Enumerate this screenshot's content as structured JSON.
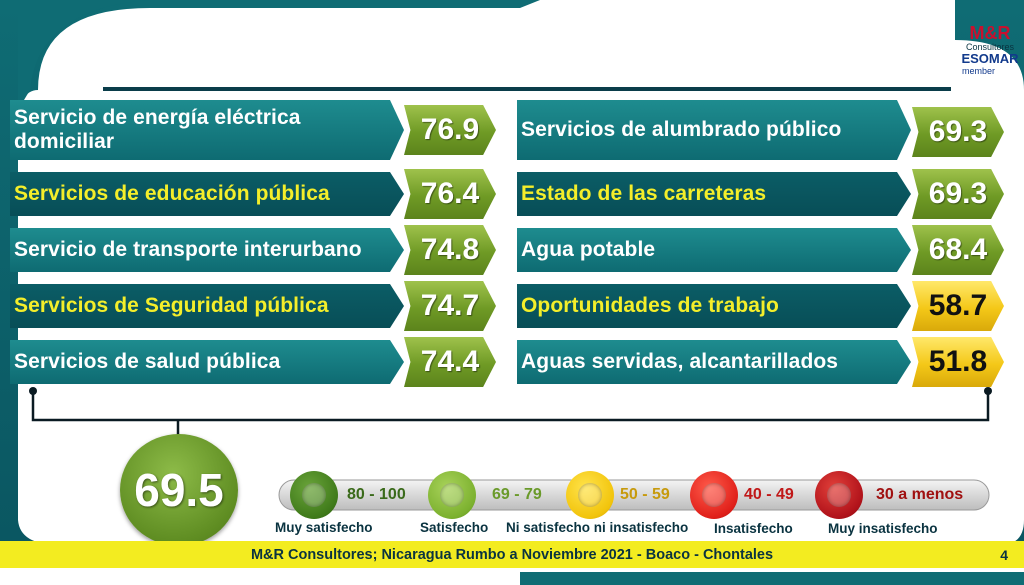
{
  "logo": {
    "company": "M&R",
    "subtitle": "Consultores",
    "association": "ESOMAR",
    "membership": "member"
  },
  "left_items": [
    {
      "label": "Servicio de energía eléctrica domiciliar",
      "score": "76.9"
    },
    {
      "label": "Servicios de educación pública",
      "score": "76.4"
    },
    {
      "label": "Servicio de transporte interurbano",
      "score": "74.8"
    },
    {
      "label": "Servicios de Seguridad pública",
      "score": "74.7"
    },
    {
      "label": "Servicios de salud pública",
      "score": "74.4"
    }
  ],
  "right_items": [
    {
      "label": "Servicios de alumbrado público",
      "score": "69.3"
    },
    {
      "label": "Estado de las carreteras",
      "score": "69.3"
    },
    {
      "label": "Agua potable",
      "score": "68.4"
    },
    {
      "label": "Oportunidades de trabajo",
      "score": "58.7"
    },
    {
      "label": "Aguas servidas, alcantarillados",
      "score": "51.8"
    }
  ],
  "overall_score": "69.5",
  "legend": [
    {
      "range": "80 - 100",
      "caption": "Muy satisfecho",
      "color": "#3f7a1a"
    },
    {
      "range": "69 - 79",
      "caption": "Satisfecho",
      "color": "#7cb12f"
    },
    {
      "range": "50 - 59",
      "caption": "Ni satisfecho ni insatisfecho",
      "color": "#f2c40c"
    },
    {
      "range": "40 - 49",
      "caption": "Insatisfecho",
      "color": "#e0201a"
    },
    {
      "range": "30 a menos",
      "caption": "Muy insatisfecho",
      "color": "#b0121a"
    }
  ],
  "footer": {
    "text": "M&R Consultores; Nicaragua Rumbo a Noviembre 2021 - Boaco - Chontales",
    "page": "4"
  }
}
